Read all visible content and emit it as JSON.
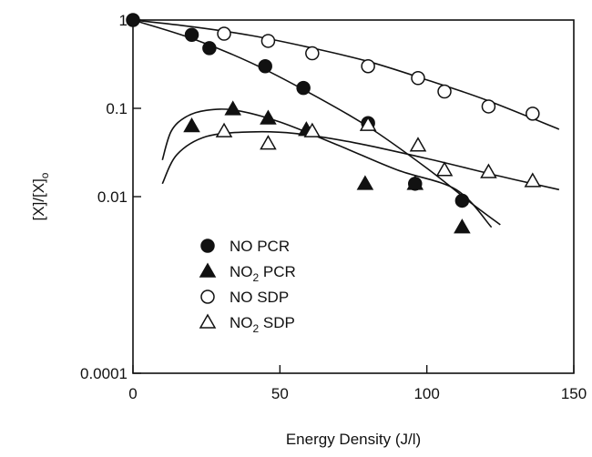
{
  "chart_data": {
    "type": "scatter",
    "xlabel": "Energy Density (J/l)",
    "ylabel_main": "[X]/[X]",
    "ylabel_sub": "o",
    "xlim": [
      0,
      150
    ],
    "ylim": [
      0.0001,
      1
    ],
    "yscale": "log",
    "grid": false,
    "legend_placement": "lower-middle",
    "x_ticks": [
      {
        "value": 0,
        "label": "0"
      },
      {
        "value": 50,
        "label": "50"
      },
      {
        "value": 100,
        "label": "100"
      },
      {
        "value": 150,
        "label": "150"
      }
    ],
    "y_ticks": [
      {
        "value": 1,
        "label": "1"
      },
      {
        "value": 0.1,
        "label": "0.1"
      },
      {
        "value": 0.01,
        "label": "0.01"
      },
      {
        "value": 0.0001,
        "label": "0.0001"
      }
    ],
    "series": [
      {
        "name": "NO PCR",
        "legend_main": "NO PCR",
        "legend_sub": "",
        "legend_tail": "",
        "marker": "filled-circle",
        "points": [
          [
            0,
            1.0
          ],
          [
            20,
            0.68
          ],
          [
            26,
            0.48
          ],
          [
            45,
            0.3
          ],
          [
            58,
            0.17
          ],
          [
            80,
            0.068
          ],
          [
            96,
            0.014
          ],
          [
            112,
            0.009
          ]
        ]
      },
      {
        "name": "NO2 PCR",
        "legend_main": "NO",
        "legend_sub": "2",
        "legend_tail": " PCR",
        "marker": "filled-triangle",
        "points": [
          [
            20,
            0.063
          ],
          [
            34,
            0.098
          ],
          [
            46,
            0.077
          ],
          [
            59,
            0.057
          ],
          [
            79,
            0.014
          ],
          [
            96,
            0.014
          ],
          [
            112,
            0.0045
          ]
        ]
      },
      {
        "name": "NO SDP",
        "legend_main": "NO SDP",
        "legend_sub": "",
        "legend_tail": "",
        "marker": "open-circle",
        "points": [
          [
            31,
            0.7
          ],
          [
            46,
            0.58
          ],
          [
            61,
            0.42
          ],
          [
            80,
            0.3
          ],
          [
            97,
            0.22
          ],
          [
            106,
            0.155
          ],
          [
            121,
            0.105
          ],
          [
            136,
            0.087
          ]
        ]
      },
      {
        "name": "NO2 SDP",
        "legend_main": "NO",
        "legend_sub": "2",
        "legend_tail": " SDP",
        "marker": "open-triangle",
        "points": [
          [
            31,
            0.055
          ],
          [
            46,
            0.04
          ],
          [
            61,
            0.055
          ],
          [
            80,
            0.065
          ],
          [
            97,
            0.038
          ],
          [
            106,
            0.02
          ],
          [
            121,
            0.019
          ],
          [
            136,
            0.015
          ]
        ]
      }
    ],
    "fit_curves": [
      {
        "for": "NO PCR",
        "points": [
          [
            0,
            1.0
          ],
          [
            20,
            0.62
          ],
          [
            40,
            0.33
          ],
          [
            60,
            0.15
          ],
          [
            80,
            0.062
          ],
          [
            100,
            0.021
          ],
          [
            115,
            0.0085
          ],
          [
            125,
            0.0048
          ]
        ]
      },
      {
        "for": "NO SDP",
        "points": [
          [
            0,
            1.0
          ],
          [
            20,
            0.84
          ],
          [
            40,
            0.67
          ],
          [
            60,
            0.49
          ],
          [
            80,
            0.34
          ],
          [
            100,
            0.21
          ],
          [
            120,
            0.125
          ],
          [
            145,
            0.058
          ]
        ]
      },
      {
        "for": "NO2 PCR",
        "points": [
          [
            10,
            0.026
          ],
          [
            13,
            0.055
          ],
          [
            18,
            0.08
          ],
          [
            25,
            0.095
          ],
          [
            35,
            0.095
          ],
          [
            50,
            0.07
          ],
          [
            70,
            0.038
          ],
          [
            90,
            0.02
          ],
          [
            110,
            0.012
          ],
          [
            122,
            0.0045
          ]
        ]
      },
      {
        "for": "NO2 SDP",
        "points": [
          [
            10,
            0.014
          ],
          [
            15,
            0.03
          ],
          [
            25,
            0.048
          ],
          [
            40,
            0.054
          ],
          [
            55,
            0.052
          ],
          [
            75,
            0.041
          ],
          [
            100,
            0.027
          ],
          [
            125,
            0.017
          ],
          [
            145,
            0.012
          ]
        ]
      }
    ]
  }
}
